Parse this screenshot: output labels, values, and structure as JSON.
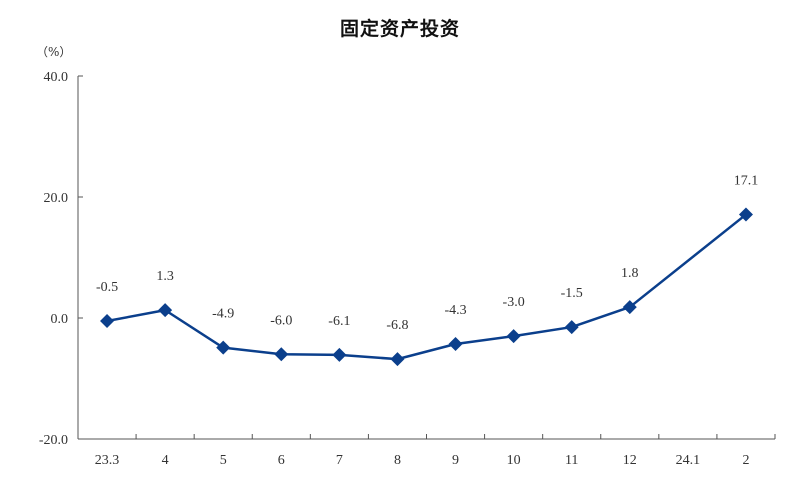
{
  "chart_data": {
    "type": "line",
    "title": "固定资产投资",
    "ylabel": "（%）",
    "xlabel": "",
    "categories": [
      "23.3",
      "4",
      "5",
      "6",
      "7",
      "8",
      "9",
      "10",
      "11",
      "12",
      "24.1",
      "2"
    ],
    "series": [
      {
        "name": "固定资产投资",
        "values": [
          -0.5,
          1.3,
          -4.9,
          -6.0,
          -6.1,
          -6.8,
          -4.3,
          -3.0,
          -1.5,
          1.8,
          null,
          17.1
        ],
        "labels": [
          "-0.5",
          "1.3",
          "-4.9",
          "-6.0",
          "-6.1",
          "-6.8",
          "-4.3",
          "-3.0",
          "-1.5",
          "1.8",
          "",
          "17.1"
        ],
        "color": "#0B3F8C",
        "marker": "diamond"
      }
    ],
    "ylim": [
      -20,
      40
    ],
    "yticks": [
      -20,
      0,
      20,
      40
    ],
    "ytick_labels": [
      "-20.0",
      "0.0",
      "20.0",
      "40.0"
    ],
    "grid": false,
    "legend": "none"
  }
}
